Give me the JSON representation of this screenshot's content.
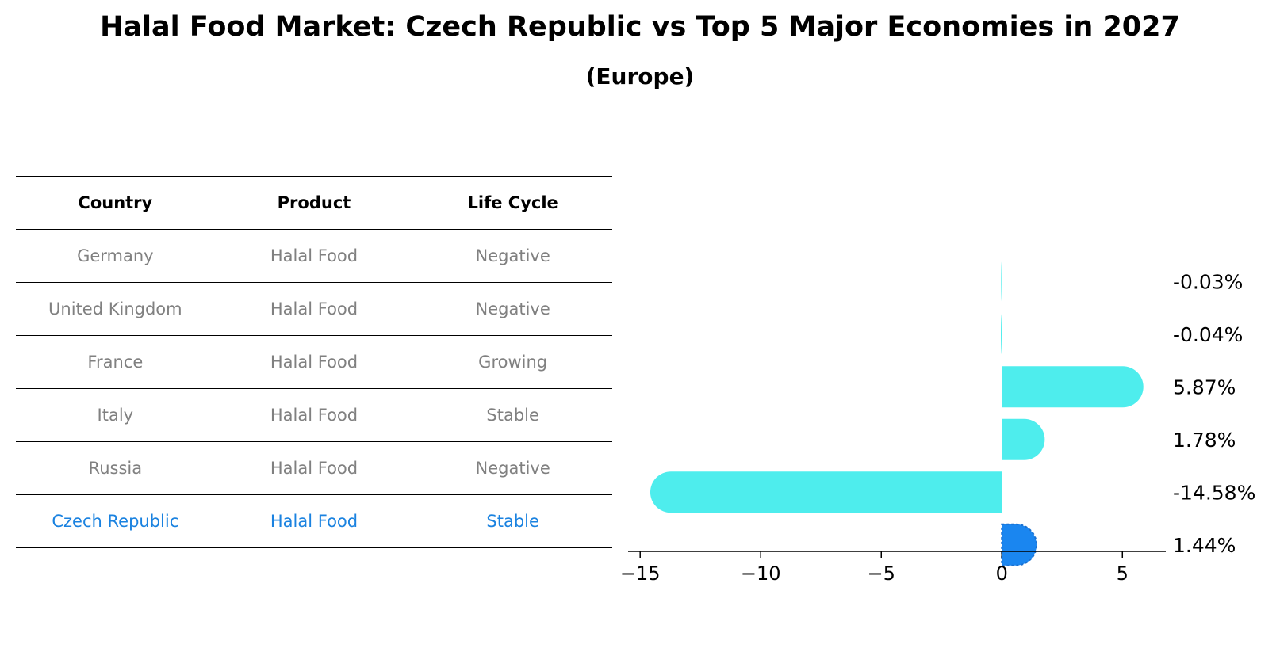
{
  "title": "Halal Food Market: Czech Republic vs Top 5 Major Economies in 2027",
  "subtitle": "(Europe)",
  "table": {
    "headers": [
      "Country",
      "Product",
      "Life Cycle"
    ],
    "rows": [
      {
        "country": "Germany",
        "product": "Halal Food",
        "life_cycle": "Negative"
      },
      {
        "country": "United Kingdom",
        "product": "Halal Food",
        "life_cycle": "Negative"
      },
      {
        "country": "France",
        "product": "Halal Food",
        "life_cycle": "Growing"
      },
      {
        "country": "Italy",
        "product": "Halal Food",
        "life_cycle": "Stable"
      },
      {
        "country": "Russia",
        "product": "Halal Food",
        "life_cycle": "Negative"
      },
      {
        "country": "Czech Republic",
        "product": "Halal Food",
        "life_cycle": "Stable"
      }
    ],
    "highlight_color": "#1a82e0",
    "text_color": "#808080"
  },
  "chart_data": {
    "type": "bar",
    "orientation": "horizontal",
    "categories": [
      "Germany",
      "United Kingdom",
      "France",
      "Italy",
      "Russia",
      "Czech Republic"
    ],
    "values": [
      -0.03,
      -0.04,
      5.87,
      1.78,
      -14.58,
      1.44
    ],
    "value_labels": [
      "-0.03%",
      "-0.04%",
      "5.87%",
      "1.78%",
      "-14.58%",
      "1.44%"
    ],
    "xlim": [
      -15.5,
      6.8
    ],
    "xticks": [
      -15,
      -10,
      -5,
      0,
      5
    ],
    "xtick_labels": [
      "−15",
      "−10",
      "−5",
      "0",
      "5"
    ],
    "bar_color": "#4eeded",
    "highlight_color": "#1a86f0",
    "highlight_category": "Czech Republic"
  }
}
